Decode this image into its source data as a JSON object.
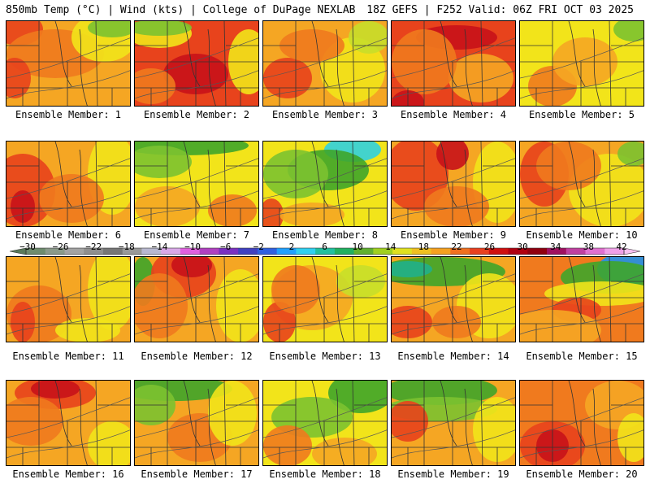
{
  "header": {
    "left": "850mb Temp (°C) | Wind (kts) | College of DuPage NEXLAB",
    "right": "18Z GEFS | F252 Valid: 06Z FRI OCT 03 2025"
  },
  "members": [
    {
      "label": "Ensemble Member: 1"
    },
    {
      "label": "Ensemble Member: 2"
    },
    {
      "label": "Ensemble Member: 3"
    },
    {
      "label": "Ensemble Member: 4"
    },
    {
      "label": "Ensemble Member: 5"
    },
    {
      "label": "Ensemble Member: 6"
    },
    {
      "label": "Ensemble Member: 7"
    },
    {
      "label": "Ensemble Member: 8"
    },
    {
      "label": "Ensemble Member: 9"
    },
    {
      "label": "Ensemble Member: 10"
    },
    {
      "label": "Ensemble Member: 11"
    },
    {
      "label": "Ensemble Member: 12"
    },
    {
      "label": "Ensemble Member: 13"
    },
    {
      "label": "Ensemble Member: 14"
    },
    {
      "label": "Ensemble Member: 15"
    },
    {
      "label": "Ensemble Member: 16"
    },
    {
      "label": "Ensemble Member: 17"
    },
    {
      "label": "Ensemble Member: 18"
    },
    {
      "label": "Ensemble Member: 19"
    },
    {
      "label": "Ensemble Member: 20"
    }
  ],
  "colorbar": {
    "ticks": [
      "−30",
      "−26",
      "−22",
      "−18",
      "−14",
      "−10",
      "−6",
      "−2",
      "2",
      "6",
      "10",
      "14",
      "18",
      "22",
      "26",
      "30",
      "34",
      "38",
      "42"
    ],
    "colors": [
      "#6e8c6e",
      "#8a9a8a",
      "#a3a3a3",
      "#8f8f8f",
      "#777777",
      "#999999",
      "#b8b8d0",
      "#d9a8e8",
      "#e060e0",
      "#b040c0",
      "#7a30c0",
      "#4040c0",
      "#3060e0",
      "#20a0ff",
      "#30d0f0",
      "#20c0a0",
      "#20b060",
      "#60b030",
      "#a0d020",
      "#e0e020",
      "#f0c020",
      "#f5a020",
      "#f07020",
      "#e84020",
      "#d01010",
      "#b00010",
      "#900010",
      "#a01060",
      "#c040a0",
      "#e070d0",
      "#f0a0e8"
    ]
  },
  "maps": {
    "color_key": {
      "g": "#3fa52a",
      "lg": "#7cc230",
      "yg": "#c8de2a",
      "y": "#f2e41a",
      "o": "#f5a623",
      "do": "#f07a1e",
      "r": "#e8431c",
      "dr": "#c8121a",
      "c": "#30d0e0",
      "b": "#2090e8",
      "t": "#20b08a"
    },
    "panels": [
      {
        "base": "o",
        "blobs": [
          [
            "r",
            15,
            10,
            30,
            20
          ],
          [
            "do",
            60,
            40,
            60,
            30
          ],
          [
            "y",
            120,
            20,
            40,
            30
          ],
          [
            "lg",
            130,
            8,
            30,
            12
          ],
          [
            "r",
            10,
            70,
            20,
            25
          ]
        ]
      },
      {
        "base": "r",
        "blobs": [
          [
            "y",
            30,
            15,
            40,
            18
          ],
          [
            "lg",
            30,
            8,
            40,
            10
          ],
          [
            "dr",
            75,
            65,
            40,
            25
          ],
          [
            "do",
            20,
            80,
            30,
            22
          ],
          [
            "y",
            140,
            50,
            25,
            40
          ]
        ]
      },
      {
        "base": "o",
        "blobs": [
          [
            "r",
            30,
            70,
            30,
            25
          ],
          [
            "y",
            110,
            60,
            40,
            40
          ],
          [
            "yg",
            130,
            20,
            25,
            20
          ],
          [
            "do",
            60,
            30,
            40,
            20
          ]
        ]
      },
      {
        "base": "r",
        "blobs": [
          [
            "dr",
            80,
            20,
            50,
            15
          ],
          [
            "o",
            110,
            70,
            40,
            30
          ],
          [
            "do",
            40,
            50,
            40,
            40
          ],
          [
            "dr",
            20,
            100,
            20,
            15
          ]
        ]
      },
      {
        "base": "y",
        "blobs": [
          [
            "lg",
            140,
            10,
            25,
            15
          ],
          [
            "do",
            40,
            80,
            30,
            25
          ],
          [
            "o",
            80,
            50,
            40,
            30
          ],
          [
            "y",
            140,
            80,
            30,
            25
          ]
        ]
      },
      {
        "base": "o",
        "blobs": [
          [
            "r",
            20,
            60,
            40,
            45
          ],
          [
            "dr",
            20,
            80,
            15,
            20
          ],
          [
            "y",
            130,
            40,
            30,
            50
          ],
          [
            "do",
            80,
            70,
            40,
            30
          ]
        ]
      },
      {
        "base": "y",
        "blobs": [
          [
            "g",
            60,
            5,
            80,
            12
          ],
          [
            "lg",
            30,
            25,
            40,
            20
          ],
          [
            "o",
            40,
            80,
            40,
            25
          ],
          [
            "do",
            120,
            85,
            30,
            20
          ]
        ]
      },
      {
        "base": "y",
        "blobs": [
          [
            "c",
            110,
            10,
            35,
            15
          ],
          [
            "g",
            80,
            35,
            50,
            25
          ],
          [
            "lg",
            40,
            40,
            40,
            30
          ],
          [
            "r",
            10,
            90,
            15,
            20
          ],
          [
            "o",
            60,
            90,
            40,
            15
          ]
        ]
      },
      {
        "base": "o",
        "blobs": [
          [
            "r",
            30,
            40,
            40,
            45
          ],
          [
            "dr",
            75,
            15,
            20,
            20
          ],
          [
            "y",
            130,
            50,
            30,
            50
          ],
          [
            "do",
            80,
            80,
            40,
            25
          ]
        ]
      },
      {
        "base": "o",
        "blobs": [
          [
            "r",
            30,
            40,
            30,
            40
          ],
          [
            "y",
            110,
            60,
            50,
            45
          ],
          [
            "lg",
            140,
            15,
            20,
            15
          ],
          [
            "do",
            60,
            30,
            40,
            30
          ]
        ]
      },
      {
        "base": "o",
        "blobs": [
          [
            "do",
            40,
            70,
            40,
            35
          ],
          [
            "r",
            20,
            80,
            15,
            25
          ],
          [
            "y",
            130,
            40,
            30,
            50
          ],
          [
            "y",
            100,
            90,
            40,
            15
          ]
        ]
      },
      {
        "base": "o",
        "blobs": [
          [
            "g",
            10,
            30,
            15,
            30
          ],
          [
            "r",
            60,
            20,
            40,
            30
          ],
          [
            "dr",
            70,
            10,
            25,
            15
          ],
          [
            "do",
            30,
            60,
            35,
            40
          ],
          [
            "y",
            130,
            60,
            30,
            45
          ]
        ]
      },
      {
        "base": "y",
        "blobs": [
          [
            "o",
            60,
            50,
            50,
            40
          ],
          [
            "r",
            20,
            80,
            20,
            25
          ],
          [
            "do",
            40,
            40,
            30,
            30
          ],
          [
            "yg",
            120,
            30,
            30,
            20
          ]
        ]
      },
      {
        "base": "o",
        "blobs": [
          [
            "g",
            60,
            18,
            80,
            18
          ],
          [
            "t",
            20,
            15,
            30,
            10
          ],
          [
            "y",
            120,
            60,
            40,
            40
          ],
          [
            "r",
            20,
            80,
            30,
            20
          ],
          [
            "do",
            80,
            80,
            30,
            20
          ]
        ]
      },
      {
        "base": "do",
        "blobs": [
          [
            "b",
            130,
            15,
            35,
            20
          ],
          [
            "g",
            110,
            25,
            60,
            20
          ],
          [
            "y",
            100,
            45,
            70,
            15
          ],
          [
            "r",
            70,
            65,
            30,
            15
          ],
          [
            "o",
            40,
            90,
            60,
            25
          ]
        ]
      },
      {
        "base": "o",
        "blobs": [
          [
            "r",
            60,
            15,
            50,
            20
          ],
          [
            "dr",
            60,
            10,
            30,
            12
          ],
          [
            "do",
            30,
            50,
            40,
            30
          ],
          [
            "y",
            130,
            80,
            30,
            30
          ]
        ]
      },
      {
        "base": "o",
        "blobs": [
          [
            "g",
            50,
            10,
            70,
            15
          ],
          [
            "lg",
            20,
            30,
            30,
            25
          ],
          [
            "do",
            80,
            70,
            40,
            30
          ],
          [
            "y",
            120,
            40,
            30,
            40
          ]
        ]
      },
      {
        "base": "y",
        "blobs": [
          [
            "g",
            120,
            15,
            40,
            25
          ],
          [
            "lg",
            60,
            45,
            50,
            25
          ],
          [
            "do",
            30,
            80,
            30,
            25
          ],
          [
            "o",
            100,
            90,
            40,
            20
          ]
        ]
      },
      {
        "base": "o",
        "blobs": [
          [
            "g",
            60,
            12,
            70,
            18
          ],
          [
            "lg",
            60,
            35,
            70,
            15
          ],
          [
            "r",
            20,
            50,
            25,
            25
          ],
          [
            "y",
            130,
            60,
            30,
            40
          ]
        ]
      },
      {
        "base": "do",
        "blobs": [
          [
            "r",
            40,
            80,
            40,
            30
          ],
          [
            "dr",
            40,
            80,
            20,
            20
          ],
          [
            "o",
            120,
            30,
            40,
            30
          ],
          [
            "y",
            140,
            70,
            20,
            30
          ]
        ]
      }
    ]
  }
}
